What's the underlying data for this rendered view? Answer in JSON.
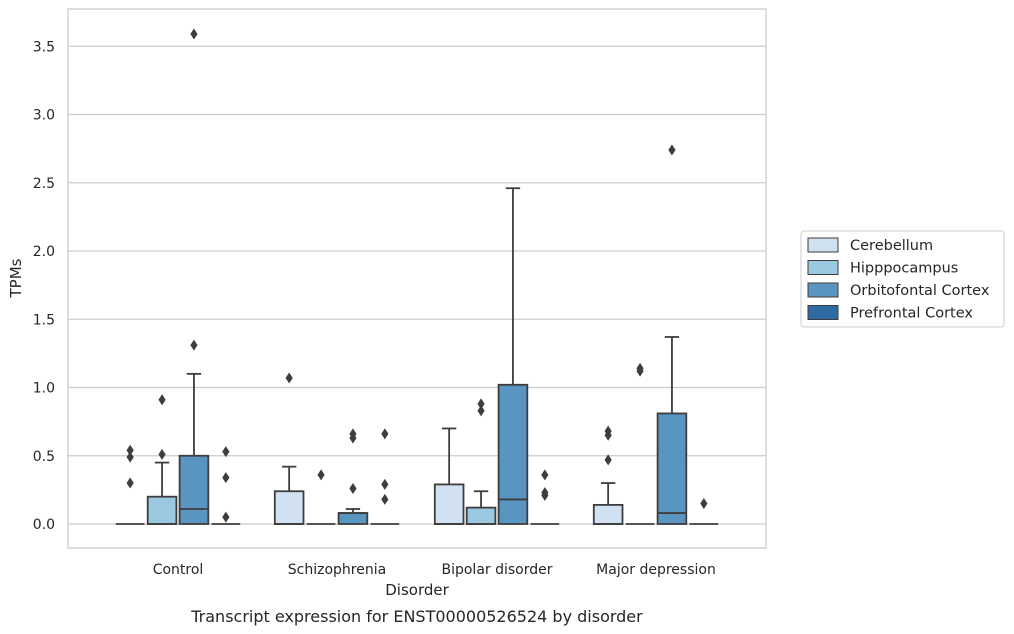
{
  "caption": "Transcript expression for ENST00000526524 by disorder",
  "chart_data": {
    "type": "box",
    "xlabel": "Disorder",
    "ylabel": "TPMs",
    "ylim": [
      -0.17,
      3.78
    ],
    "yticks": [
      "0.0",
      "0.5",
      "1.0",
      "1.5",
      "2.0",
      "2.5",
      "3.0",
      "3.5"
    ],
    "ytick_values": [
      0,
      0.5,
      1,
      1.5,
      2,
      2.5,
      3,
      3.5
    ],
    "grid": "horizontal",
    "legend_position": "right",
    "categories": [
      "Control",
      "Schizophrenia",
      "Bipolar disorder",
      "Major depression"
    ],
    "series": [
      {
        "name": "Cerebellum",
        "color": "#d0e1f2",
        "boxes": [
          {
            "q1": 0,
            "median": 0,
            "q3": 0,
            "whislo": 0,
            "whishi": 0,
            "fliers": [
              0.3,
              0.49,
              0.54
            ]
          },
          {
            "q1": 0,
            "median": 0,
            "q3": 0.24,
            "whislo": 0,
            "whishi": 0.42,
            "fliers": [
              1.07
            ]
          },
          {
            "q1": 0,
            "median": 0,
            "q3": 0.29,
            "whislo": 0,
            "whishi": 0.7,
            "fliers": []
          },
          {
            "q1": 0,
            "median": 0,
            "q3": 0.14,
            "whislo": 0,
            "whishi": 0.3,
            "fliers": [
              0.47,
              0.65,
              0.68
            ]
          }
        ]
      },
      {
        "name": "Hipppocampus",
        "color": "#9ac8e0",
        "boxes": [
          {
            "q1": 0,
            "median": 0,
            "q3": 0.2,
            "whislo": 0,
            "whishi": 0.45,
            "fliers": [
              0.51,
              0.91
            ]
          },
          {
            "q1": 0,
            "median": 0,
            "q3": 0,
            "whislo": 0,
            "whishi": 0,
            "fliers": [
              0.36
            ]
          },
          {
            "q1": 0,
            "median": 0,
            "q3": 0.12,
            "whislo": 0,
            "whishi": 0.24,
            "fliers": [
              0.83,
              0.88
            ]
          },
          {
            "q1": 0,
            "median": 0,
            "q3": 0,
            "whislo": 0,
            "whishi": 0,
            "fliers": [
              1.12,
              1.14
            ]
          }
        ]
      },
      {
        "name": "Orbitofontal Cortex",
        "color": "#5a95c2",
        "boxes": [
          {
            "q1": 0,
            "median": 0.11,
            "q3": 0.5,
            "whislo": 0,
            "whishi": 1.1,
            "fliers": [
              1.31,
              3.59
            ]
          },
          {
            "q1": 0,
            "median": 0.08,
            "q3": 0.08,
            "whislo": 0,
            "whishi": 0.11,
            "fliers": [
              0.26,
              0.63,
              0.66
            ]
          },
          {
            "q1": 0,
            "median": 0.18,
            "q3": 1.02,
            "whislo": 0,
            "whishi": 2.46,
            "fliers": []
          },
          {
            "q1": 0,
            "median": 0.08,
            "q3": 0.81,
            "whislo": 0,
            "whishi": 1.37,
            "fliers": [
              2.74
            ]
          }
        ]
      },
      {
        "name": "Prefrontal Cortex",
        "color": "#2f6aa3",
        "boxes": [
          {
            "q1": 0,
            "median": 0,
            "q3": 0,
            "whislo": 0,
            "whishi": 0,
            "fliers": [
              0.05,
              0.34,
              0.53
            ]
          },
          {
            "q1": 0,
            "median": 0,
            "q3": 0,
            "whislo": 0,
            "whishi": 0,
            "fliers": [
              0.18,
              0.29,
              0.66
            ]
          },
          {
            "q1": 0,
            "median": 0,
            "q3": 0,
            "whislo": 0,
            "whishi": 0,
            "fliers": [
              0.21,
              0.23,
              0.36
            ]
          },
          {
            "q1": 0,
            "median": 0,
            "q3": 0,
            "whislo": 0,
            "whishi": 0,
            "fliers": [
              0.15
            ]
          }
        ]
      }
    ]
  }
}
